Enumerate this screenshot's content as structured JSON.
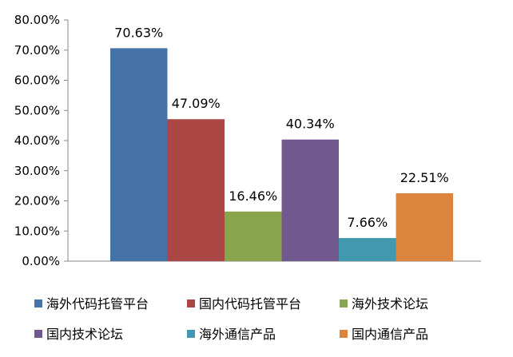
{
  "chart_data": {
    "type": "bar",
    "title": "",
    "xlabel": "",
    "ylabel": "",
    "ylim": [
      0,
      80
    ],
    "yticks": [
      "0.00%",
      "10.00%",
      "20.00%",
      "30.00%",
      "40.00%",
      "50.00%",
      "60.00%",
      "70.00%",
      "80.00%"
    ],
    "grid": false,
    "legend_position": "bottom",
    "series": [
      {
        "name": "海外代码托管平台",
        "value": 70.63,
        "label": "70.63%",
        "color": "#4572A7"
      },
      {
        "name": "国内代码托管平台",
        "value": 47.09,
        "label": "47.09%",
        "color": "#AA4643"
      },
      {
        "name": "海外技术论坛",
        "value": 16.46,
        "label": "16.46%",
        "color": "#89A54E"
      },
      {
        "name": "国内技术论坛",
        "value": 40.34,
        "label": "40.34%",
        "color": "#71588F"
      },
      {
        "name": "海外通信产品",
        "value": 7.66,
        "label": "7.66%",
        "color": "#4198AF"
      },
      {
        "name": "国内通信产品",
        "value": 22.51,
        "label": "22.51%",
        "color": "#DB843D"
      }
    ]
  }
}
